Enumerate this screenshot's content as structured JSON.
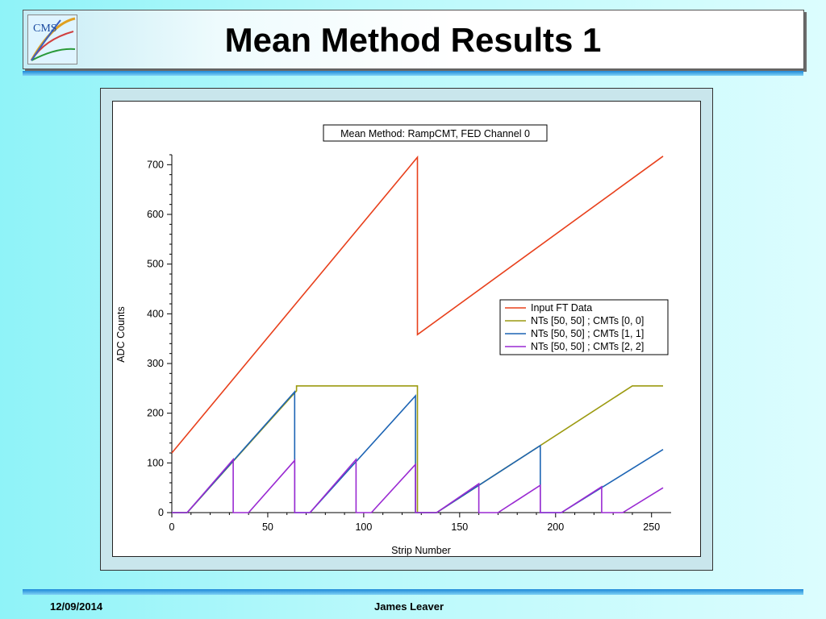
{
  "slide": {
    "title": "Mean Method Results 1",
    "footer_date": "12/09/2014",
    "footer_author": "James Leaver",
    "logo_text": "CMS"
  },
  "chart_data": {
    "type": "line",
    "title": "Mean Method: RampCMT, FED Channel 0",
    "xlabel": "Strip Number",
    "ylabel": "ADC Counts",
    "xlim": [
      0,
      256
    ],
    "ylim": [
      0,
      720
    ],
    "xticks": [
      0,
      50,
      100,
      150,
      200,
      250
    ],
    "yticks": [
      0,
      100,
      200,
      300,
      400,
      500,
      600,
      700
    ],
    "grid": false,
    "legend_position": "right",
    "series": [
      {
        "name": "Input FT Data",
        "color": "#e8401c",
        "points": [
          [
            0,
            120
          ],
          [
            128,
            715
          ],
          [
            128,
            358
          ],
          [
            256,
            717
          ]
        ]
      },
      {
        "name": "NTs [50, 50] ; CMTs [0, 0]",
        "color": "#9c9a10",
        "points": [
          [
            0,
            0
          ],
          [
            8,
            0
          ],
          [
            65,
            245
          ],
          [
            65,
            255
          ],
          [
            128,
            255
          ],
          [
            128,
            0
          ],
          [
            138,
            0
          ],
          [
            240,
            255
          ],
          [
            256,
            255
          ]
        ]
      },
      {
        "name": "NTs [50, 50] ; CMTs [1, 1]",
        "color": "#1c64b4",
        "points": [
          [
            0,
            0
          ],
          [
            8,
            0
          ],
          [
            64,
            243
          ],
          [
            64,
            0
          ],
          [
            72,
            0
          ],
          [
            127,
            235
          ],
          [
            127,
            0
          ],
          [
            138,
            0
          ],
          [
            192,
            135
          ],
          [
            192,
            0
          ],
          [
            203,
            0
          ],
          [
            256,
            127
          ]
        ]
      },
      {
        "name": "NTs [50, 50] ; CMTs [2, 2]",
        "color": "#9a2ad2",
        "points": [
          [
            0,
            0
          ],
          [
            8,
            0
          ],
          [
            32,
            107
          ],
          [
            32,
            0
          ],
          [
            40,
            0
          ],
          [
            64,
            105
          ],
          [
            64,
            0
          ],
          [
            72,
            0
          ],
          [
            96,
            107
          ],
          [
            96,
            0
          ],
          [
            104,
            0
          ],
          [
            127,
            97
          ],
          [
            127,
            0
          ],
          [
            138,
            0
          ],
          [
            160,
            58
          ],
          [
            160,
            0
          ],
          [
            170,
            0
          ],
          [
            192,
            55
          ],
          [
            192,
            0
          ],
          [
            203,
            0
          ],
          [
            224,
            52
          ],
          [
            224,
            0
          ],
          [
            235,
            0
          ],
          [
            256,
            50
          ]
        ]
      }
    ]
  }
}
